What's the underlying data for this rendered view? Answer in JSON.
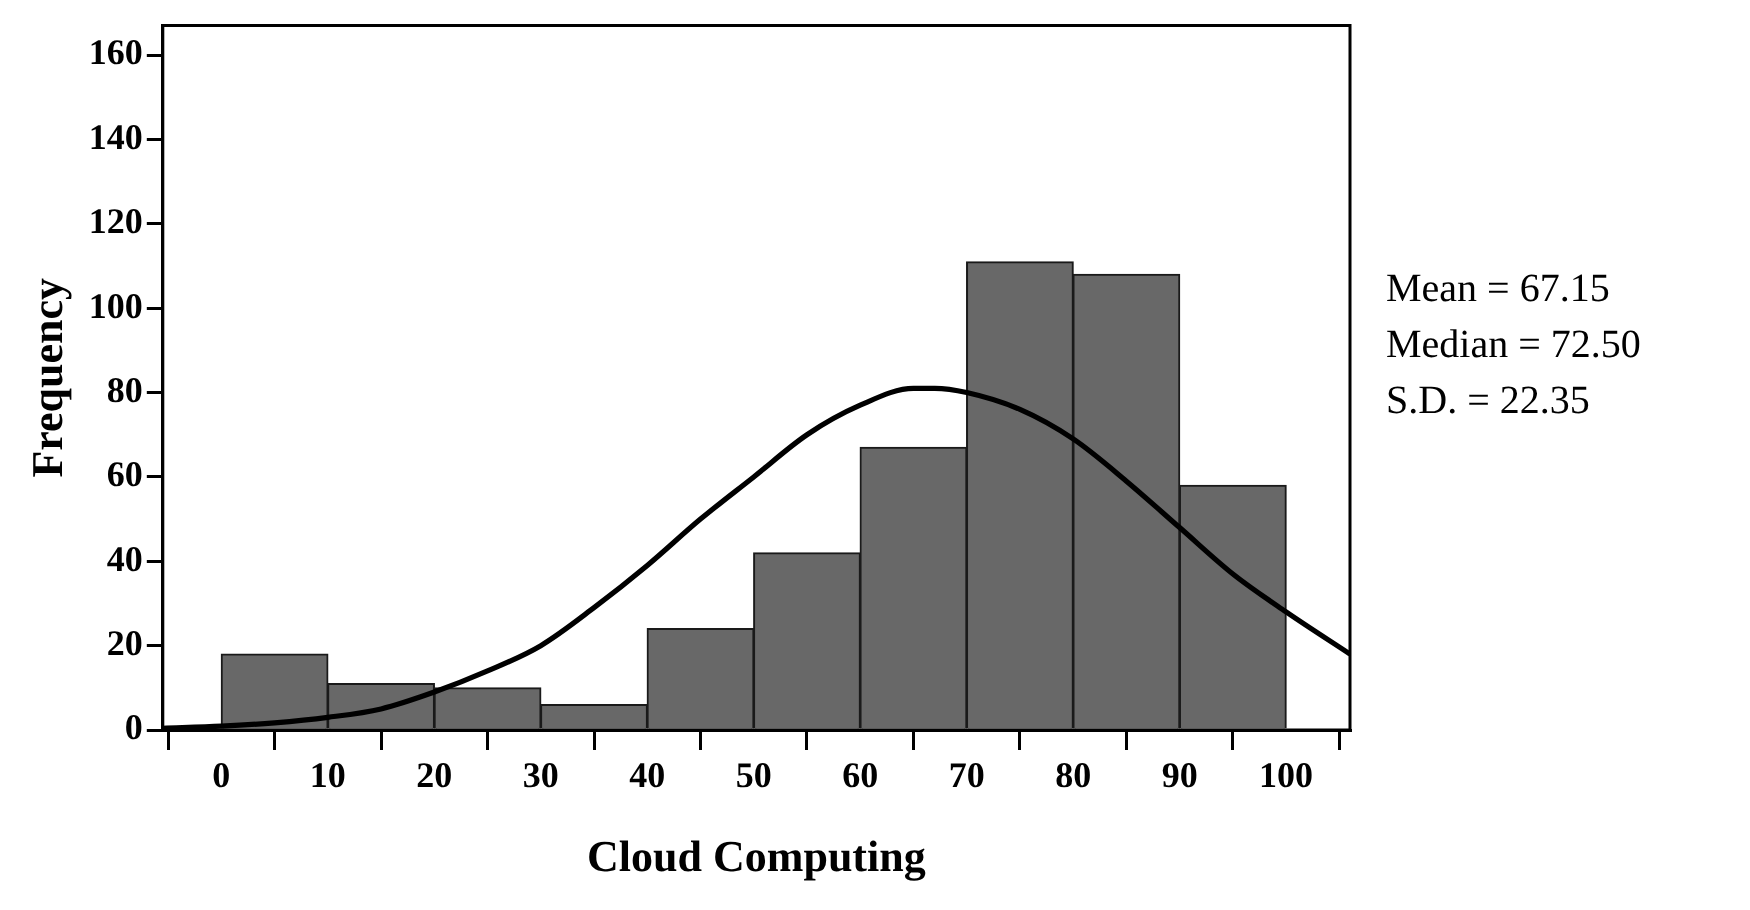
{
  "chart_data": {
    "type": "histogram",
    "xlabel": "Cloud Computing",
    "ylabel": "Frequency",
    "bins": [
      0,
      10,
      20,
      30,
      40,
      50,
      60,
      70,
      80,
      90,
      100
    ],
    "values": [
      18,
      11,
      10,
      6,
      24,
      42,
      67,
      111,
      108,
      58
    ],
    "color": "#686868",
    "series": [
      {
        "type": "line",
        "color": "#000000",
        "x": [
          -5.5,
          0,
          5,
          10,
          15,
          20,
          25,
          30,
          35,
          40,
          45,
          50,
          55,
          60,
          65,
          67,
          70,
          75,
          80,
          85,
          90,
          95,
          100,
          106
        ],
        "values": [
          0.4,
          0.9,
          1.7,
          3,
          5,
          9,
          14,
          20,
          29,
          39,
          50,
          60,
          70,
          77,
          81,
          81,
          80,
          76,
          69,
          59,
          48,
          37,
          28,
          18
        ]
      }
    ],
    "xlim": [
      -5.5,
      106
    ],
    "xticks": [
      0,
      10,
      20,
      30,
      40,
      50,
      60,
      70,
      80,
      90,
      100
    ],
    "ylim": [
      0,
      167
    ],
    "yticks": [
      0,
      20,
      40,
      60,
      80,
      100,
      120,
      140,
      160
    ],
    "grid": false,
    "legend": false,
    "marker": "none",
    "annotations": [
      "Mean = 67.15",
      "Median = 72.50",
      "S.D. = 22.35"
    ]
  }
}
